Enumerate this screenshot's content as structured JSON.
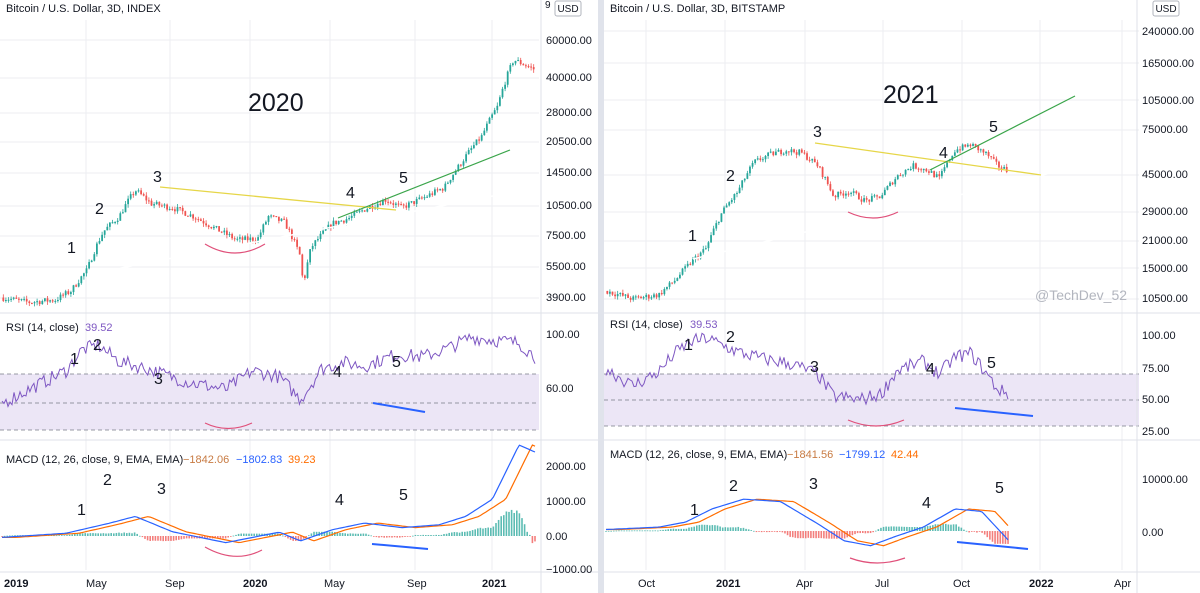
{
  "colors": {
    "background": "#ffffff",
    "grid": "#eceef2",
    "separator": "#dfe2e8",
    "text": "#131722",
    "axis_text": "#131722",
    "up": "#26a69a",
    "down": "#ef5350",
    "rsi_line": "#7e57c2",
    "rsi_band": "#ece6f6",
    "macd_line": "#2962ff",
    "signal_line": "#ff6d00",
    "hist_up": "#26a69a",
    "hist_down": "#ef5350",
    "support_line": "#ffffff",
    "resistance_line": "#e6d648",
    "channel_line": "#3aa54a",
    "arc": "#e0507a",
    "divergence": "#2962ff",
    "watermark": "#b2b5be"
  },
  "panels": [
    {
      "id": "left",
      "chart_title": "Bitcoin / U.S. Dollar, 3D, INDEX",
      "currency_badge": "USD",
      "year_label": "2020",
      "price_axis_labels": [
        "60000.00",
        "40000.00",
        "28000.00",
        "20500.00",
        "14500.00",
        "10500.00",
        "7500.00",
        "5500.00",
        "3900.00"
      ],
      "clipped_top_label": "9",
      "wave_labels": [
        "1",
        "2",
        "3",
        "4",
        "5"
      ],
      "rsi_title": "RSI (14, close)",
      "rsi_value": "39.52",
      "rsi_axis_labels": [
        "100.00",
        "60.00"
      ],
      "rsi_wave_labels": [
        "1",
        "2",
        "3",
        "4",
        "5"
      ],
      "macd_title": "MACD (12, 26, close, 9, EMA, EMA)",
      "macd_values": [
        "−1842.06",
        "−1802.83",
        "39.23"
      ],
      "macd_axis_labels": [
        "2000.00",
        "1000.00",
        "0.00",
        "−1000.00"
      ],
      "macd_wave_labels": [
        "1",
        "2",
        "3",
        "4",
        "5"
      ],
      "time_axis_labels": [
        "2019",
        "May",
        "Sep",
        "2020",
        "May",
        "Sep",
        "2021"
      ]
    },
    {
      "id": "right",
      "chart_title": "Bitcoin / U.S. Dollar, 3D, BITSTAMP",
      "currency_badge": "USD",
      "year_label": "2021",
      "price_axis_labels": [
        "240000.00",
        "165000.00",
        "105000.00",
        "75000.00",
        "45000.00",
        "29000.00",
        "21000.00",
        "15000.00",
        "10500.00"
      ],
      "watermark": "@TechDev_52",
      "wave_labels": [
        "1",
        "2",
        "3",
        "4",
        "5"
      ],
      "rsi_title": "RSI (14, close)",
      "rsi_value": "39.53",
      "rsi_axis_labels": [
        "100.00",
        "75.00",
        "50.00",
        "25.00"
      ],
      "rsi_wave_labels": [
        "1",
        "2",
        "3",
        "4",
        "5"
      ],
      "macd_title": "MACD (12, 26, close, 9, EMA, EMA)",
      "macd_values": [
        "−1841.56",
        "−1799.12",
        "42.44"
      ],
      "macd_axis_labels": [
        "10000.00",
        "0.00"
      ],
      "macd_wave_labels": [
        "1",
        "2",
        "3",
        "4",
        "5"
      ],
      "time_axis_labels": [
        "Oct",
        "2021",
        "Apr",
        "Jul",
        "Oct",
        "2022",
        "Apr"
      ]
    }
  ],
  "chart_data": [
    {
      "type": "candlestick",
      "title": "Bitcoin / U.S. Dollar, 3D, INDEX",
      "scale": "log",
      "y_axis_side": "right",
      "x_range": [
        "2019-01",
        "2021-04"
      ],
      "price_path": [
        [
          0,
          3800
        ],
        [
          0.05,
          3600
        ],
        [
          0.1,
          3700
        ],
        [
          0.13,
          4100
        ],
        [
          0.16,
          5200
        ],
        [
          0.19,
          8000
        ],
        [
          0.22,
          9500
        ],
        [
          0.25,
          12800
        ],
        [
          0.28,
          11000
        ],
        [
          0.32,
          10500
        ],
        [
          0.36,
          9500
        ],
        [
          0.4,
          8300
        ],
        [
          0.44,
          7300
        ],
        [
          0.48,
          7400
        ],
        [
          0.5,
          9500
        ],
        [
          0.53,
          8900
        ],
        [
          0.56,
          6000
        ],
        [
          0.565,
          4300
        ],
        [
          0.58,
          6700
        ],
        [
          0.62,
          8800
        ],
        [
          0.65,
          9300
        ],
        [
          0.68,
          10300
        ],
        [
          0.72,
          11500
        ],
        [
          0.75,
          10500
        ],
        [
          0.79,
          11700
        ],
        [
          0.83,
          13200
        ],
        [
          0.86,
          17200
        ],
        [
          0.9,
          23500
        ],
        [
          0.93,
          33000
        ],
        [
          0.96,
          56000
        ],
        [
          1,
          50000
        ]
      ],
      "rsi_path": [
        [
          0,
          30
        ],
        [
          0.12,
          58
        ],
        [
          0.15,
          76
        ],
        [
          0.18,
          80
        ],
        [
          0.22,
          66
        ],
        [
          0.27,
          60
        ],
        [
          0.35,
          48
        ],
        [
          0.42,
          42
        ],
        [
          0.47,
          58
        ],
        [
          0.52,
          53
        ],
        [
          0.56,
          33
        ],
        [
          0.6,
          60
        ],
        [
          0.64,
          65
        ],
        [
          0.68,
          62
        ],
        [
          0.74,
          72
        ],
        [
          0.79,
          70
        ],
        [
          0.84,
          78
        ],
        [
          0.88,
          87
        ],
        [
          0.93,
          84
        ],
        [
          0.97,
          82
        ],
        [
          1,
          70
        ]
      ],
      "macd_path": [
        [
          0,
          -40
        ],
        [
          0.12,
          80
        ],
        [
          0.2,
          360
        ],
        [
          0.25,
          560
        ],
        [
          0.32,
          120
        ],
        [
          0.42,
          -190
        ],
        [
          0.52,
          110
        ],
        [
          0.56,
          -140
        ],
        [
          0.62,
          180
        ],
        [
          0.68,
          370
        ],
        [
          0.75,
          240
        ],
        [
          0.82,
          320
        ],
        [
          0.87,
          560
        ],
        [
          0.92,
          1050
        ],
        [
          0.97,
          2600
        ],
        [
          1,
          2400
        ]
      ]
    },
    {
      "type": "candlestick",
      "title": "Bitcoin / U.S. Dollar, 3D, BITSTAMP",
      "scale": "log",
      "y_axis_side": "right",
      "x_range": [
        "2020-08",
        "2022-04"
      ],
      "price_path": [
        [
          0,
          11500
        ],
        [
          0.05,
          10500
        ],
        [
          0.1,
          11000
        ],
        [
          0.13,
          13000
        ],
        [
          0.16,
          16000
        ],
        [
          0.19,
          19000
        ],
        [
          0.22,
          29000
        ],
        [
          0.25,
          37000
        ],
        [
          0.28,
          52000
        ],
        [
          0.31,
          57000
        ],
        [
          0.34,
          60000
        ],
        [
          0.37,
          58000
        ],
        [
          0.4,
          50000
        ],
        [
          0.43,
          35000
        ],
        [
          0.46,
          37000
        ],
        [
          0.49,
          33000
        ],
        [
          0.52,
          35000
        ],
        [
          0.55,
          44000
        ],
        [
          0.58,
          50000
        ],
        [
          0.61,
          47000
        ],
        [
          0.63,
          43000
        ],
        [
          0.66,
          60000
        ],
        [
          0.69,
          64000
        ],
        [
          0.72,
          57000
        ],
        [
          0.74,
          50000
        ],
        [
          0.76,
          47000
        ]
      ],
      "rsi_path": [
        [
          0,
          60
        ],
        [
          0.05,
          45
        ],
        [
          0.1,
          57
        ],
        [
          0.13,
          73
        ],
        [
          0.16,
          83
        ],
        [
          0.19,
          86
        ],
        [
          0.22,
          80
        ],
        [
          0.25,
          74
        ],
        [
          0.3,
          68
        ],
        [
          0.35,
          64
        ],
        [
          0.4,
          55
        ],
        [
          0.43,
          36
        ],
        [
          0.48,
          33
        ],
        [
          0.52,
          38
        ],
        [
          0.55,
          58
        ],
        [
          0.6,
          66
        ],
        [
          0.63,
          55
        ],
        [
          0.66,
          70
        ],
        [
          0.69,
          73
        ],
        [
          0.72,
          55
        ],
        [
          0.74,
          42
        ],
        [
          0.76,
          38
        ]
      ],
      "macd_path": [
        [
          0,
          300
        ],
        [
          0.1,
          800
        ],
        [
          0.15,
          1800
        ],
        [
          0.2,
          4500
        ],
        [
          0.26,
          6500
        ],
        [
          0.33,
          6000
        ],
        [
          0.4,
          1500
        ],
        [
          0.45,
          -2000
        ],
        [
          0.5,
          -3000
        ],
        [
          0.55,
          -1000
        ],
        [
          0.6,
          800
        ],
        [
          0.66,
          4500
        ],
        [
          0.71,
          4000
        ],
        [
          0.76,
          -1800
        ]
      ]
    }
  ]
}
